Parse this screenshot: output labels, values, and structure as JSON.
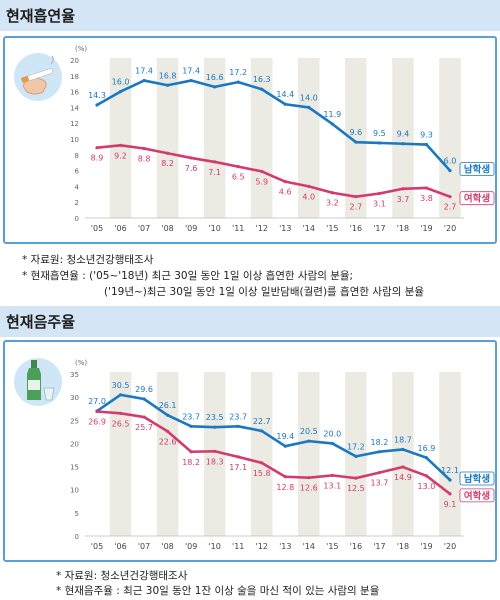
{
  "sections": [
    {
      "title": "현재흡연율",
      "icon": "cigarette-hand-icon",
      "notes": [
        "* 자료원: 청소년건강행태조사",
        "* 현재흡연율 : ('05~'18년) 최근 30일 동안 1일 이상 흡연한 사람의 분율;",
        "('19년~)최근 30일 동안 1일 이상 일반담배(궐련)를 흡연한 사람의 분율"
      ]
    },
    {
      "title": "현재음주율",
      "icon": "soju-bottle-glass-icon",
      "notes": [
        "* 자료원: 청소년건강행태조사",
        "* 현재음주율 : 최근 30일 동안 1잔 이상 술을 마신 적이 있는 사람의 분율"
      ]
    }
  ],
  "chart_data": [
    {
      "type": "line",
      "unit": "(%)",
      "x": [
        "'05",
        "'06",
        "'07",
        "'08",
        "'09",
        "'10",
        "'11",
        "'12",
        "'13",
        "'14",
        "'15",
        "'16",
        "'17",
        "'18",
        "'19",
        "'20"
      ],
      "ylim": [
        0,
        20
      ],
      "yticks": [
        0,
        2,
        4,
        6,
        8,
        10,
        12,
        14,
        16,
        18,
        20
      ],
      "series": [
        {
          "name": "남학생",
          "color": "#1a78c2",
          "values": [
            14.3,
            16.0,
            17.4,
            16.8,
            17.4,
            16.6,
            17.2,
            16.3,
            14.4,
            14.0,
            11.9,
            9.6,
            9.5,
            9.4,
            9.3,
            6.0
          ]
        },
        {
          "name": "여학생",
          "color": "#d33a6f",
          "values": [
            8.9,
            9.2,
            8.8,
            8.2,
            7.6,
            7.1,
            6.5,
            5.9,
            4.6,
            4.0,
            3.2,
            2.7,
            3.1,
            3.7,
            3.8,
            2.7
          ]
        }
      ]
    },
    {
      "type": "line",
      "unit": "(%)",
      "x": [
        "'05",
        "'06",
        "'07",
        "'08",
        "'09",
        "'10",
        "'11",
        "'12",
        "'13",
        "'14",
        "'15",
        "'16",
        "'17",
        "'18",
        "'19",
        "'20"
      ],
      "ylim": [
        0,
        35
      ],
      "yticks": [
        0,
        5,
        10,
        15,
        20,
        25,
        30,
        35
      ],
      "series": [
        {
          "name": "남학생",
          "color": "#1a78c2",
          "values": [
            27.0,
            30.5,
            29.6,
            26.1,
            23.7,
            23.5,
            23.7,
            22.7,
            19.4,
            20.5,
            20.0,
            17.2,
            18.2,
            18.7,
            16.9,
            12.1
          ]
        },
        {
          "name": "여학생",
          "color": "#d33a6f",
          "values": [
            26.9,
            26.5,
            25.7,
            22.6,
            18.2,
            18.3,
            17.1,
            15.8,
            12.8,
            12.6,
            13.1,
            12.5,
            13.7,
            14.9,
            13.0,
            9.1
          ]
        }
      ]
    }
  ]
}
